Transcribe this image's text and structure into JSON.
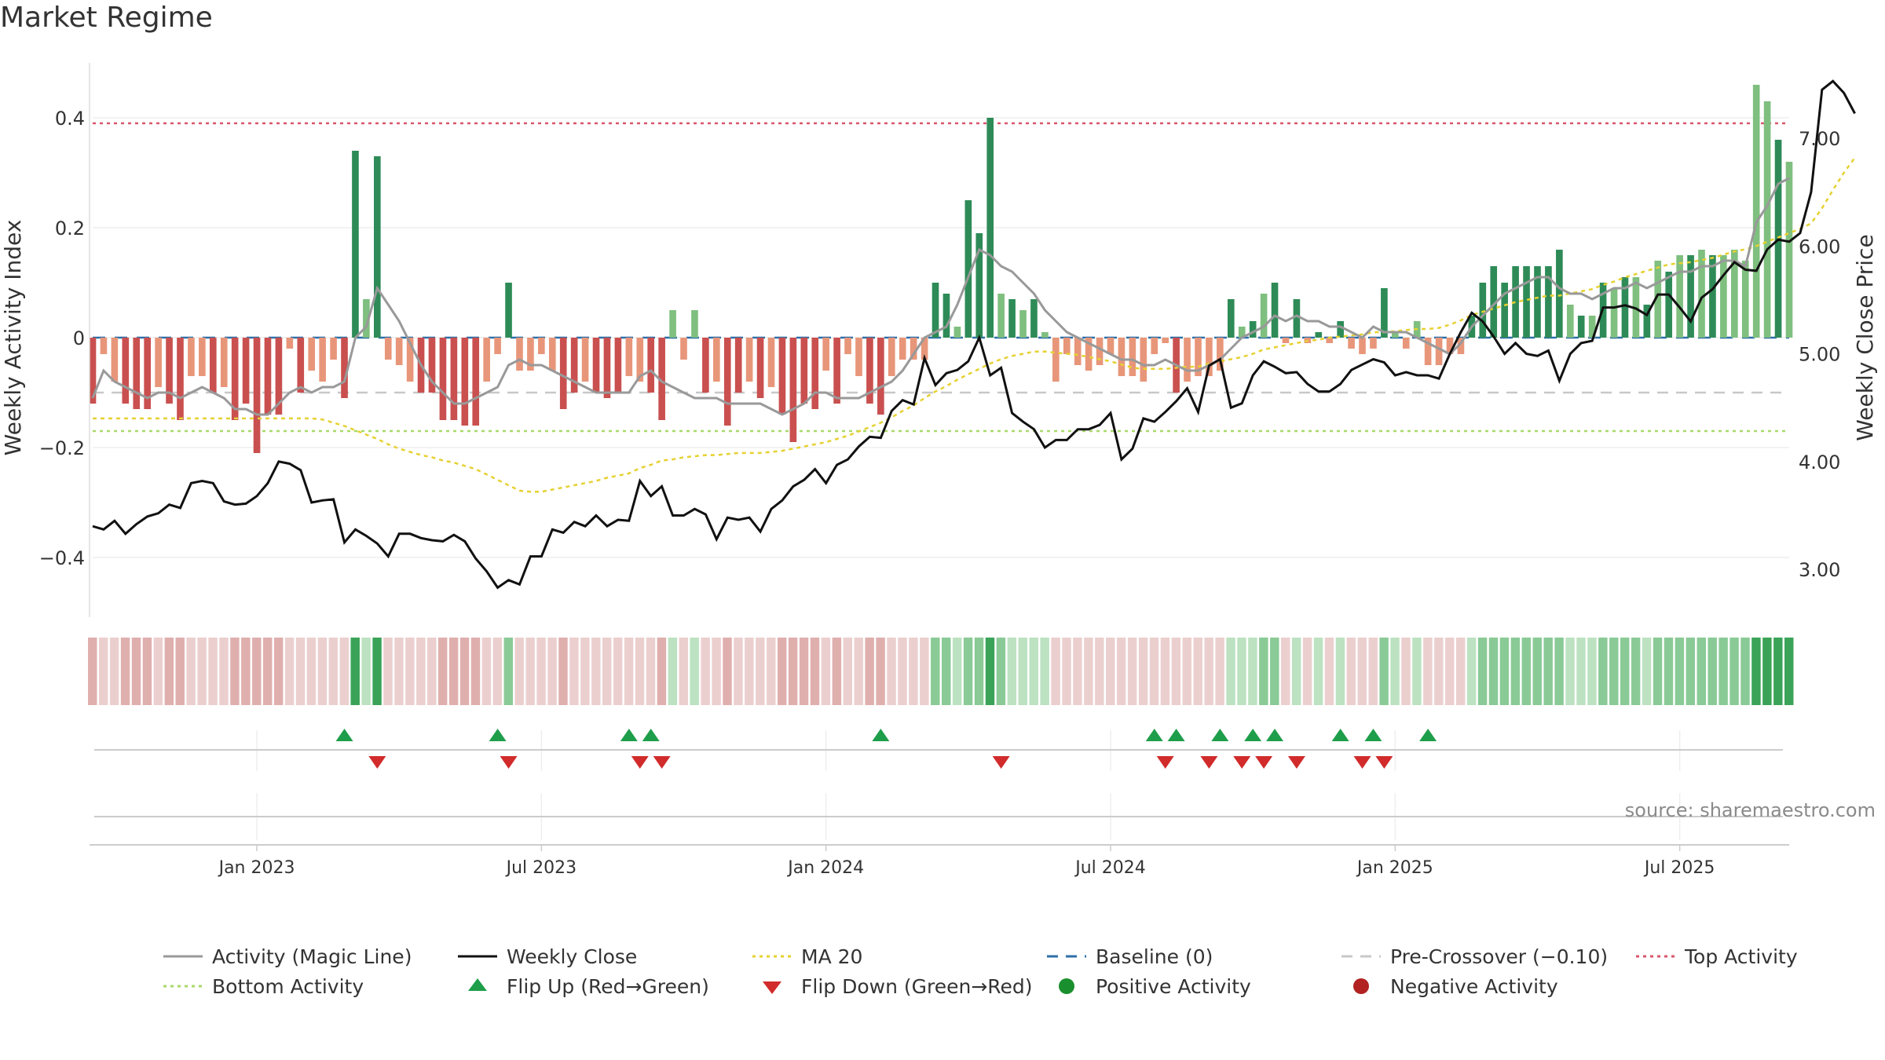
{
  "title": "Market Regime",
  "source": "source: sharemaestro.com",
  "colors": {
    "bar_green_dark": "#2e8b57",
    "bar_green_light": "#7fbf7f",
    "bar_red_dark": "#c9504f",
    "bar_red_light": "#e8967a",
    "close_line": "#111111",
    "magic_line": "#999999",
    "ma20": "#e6d132",
    "baseline": "#2e6fa8",
    "pre_crossover": "#c8c8c8",
    "top_activity": "#d9566b",
    "bottom_activity": "#a8d96a",
    "flip_up": "#1e9e4a",
    "flip_down": "#d12b2b",
    "positive_activity": "#1a8f2e",
    "negative_activity": "#b22222"
  },
  "legend": [
    {
      "key": "magic",
      "label": "Activity (Magic Line)",
      "style": "solid",
      "color": "#999999"
    },
    {
      "key": "close",
      "label": "Weekly Close",
      "style": "solid",
      "color": "#111111"
    },
    {
      "key": "ma20",
      "label": "MA 20",
      "style": "dotted",
      "color": "#e6d132"
    },
    {
      "key": "baseline",
      "label": "Baseline (0)",
      "style": "dashed",
      "color": "#2e6fa8"
    },
    {
      "key": "pre",
      "label": "Pre-Crossover (−0.10)",
      "style": "dashed",
      "color": "#c8c8c8"
    },
    {
      "key": "top",
      "label": "Top Activity",
      "style": "dotted",
      "color": "#d9566b"
    },
    {
      "key": "bottom",
      "label": "Bottom Activity",
      "style": "dotted",
      "color": "#a8d96a"
    },
    {
      "key": "flipup",
      "label": "Flip Up (Red→Green)",
      "style": "triangle-up",
      "color": "#1e9e4a"
    },
    {
      "key": "flipdown",
      "label": "Flip Down (Green→Red)",
      "style": "triangle-down",
      "color": "#d12b2b"
    },
    {
      "key": "pos",
      "label": "Positive Activity",
      "style": "dot",
      "color": "#1a8f2e"
    },
    {
      "key": "neg",
      "label": "Negative Activity",
      "style": "dot",
      "color": "#b22222"
    }
  ],
  "chart_data": {
    "type": "bar",
    "title": "Market Regime",
    "xlabel": "",
    "ylabel": "Weekly Activity Index",
    "y2label": "Weekly Close Price",
    "x_ticks": [
      "Jan 2023",
      "Jul 2023",
      "Jan 2024",
      "Jul 2024",
      "Jan 2025",
      "Jul 2025"
    ],
    "x_tick_week_index": [
      15,
      41,
      67,
      93,
      119,
      145
    ],
    "y_ticks": [
      -0.4,
      -0.2,
      0,
      0.2,
      0.4
    ],
    "y_tick_labels": [
      "−0.4",
      "−0.2",
      "0",
      "0.2",
      "0.4"
    ],
    "ylim": [
      -0.5,
      0.5
    ],
    "y2_ticks": [
      3.0,
      4.0,
      5.0,
      6.0,
      7.0
    ],
    "y2_tick_labels": [
      "3.00",
      "4.00",
      "5.00",
      "6.00",
      "7.00"
    ],
    "y2lim": [
      2.6,
      7.7
    ],
    "reference_lines": {
      "baseline": 0,
      "pre_crossover": -0.1,
      "top_activity": 0.39,
      "bottom_activity": -0.17
    },
    "activity": [
      -0.12,
      -0.03,
      -0.08,
      -0.12,
      -0.13,
      -0.13,
      -0.09,
      -0.12,
      -0.15,
      -0.07,
      -0.07,
      -0.1,
      -0.09,
      -0.15,
      -0.12,
      -0.21,
      -0.14,
      -0.14,
      -0.02,
      -0.1,
      -0.06,
      -0.08,
      -0.04,
      -0.11,
      0.34,
      0.07,
      0.33,
      -0.04,
      -0.05,
      -0.08,
      -0.1,
      -0.1,
      -0.15,
      -0.15,
      -0.16,
      -0.16,
      -0.08,
      -0.03,
      0.1,
      -0.06,
      -0.06,
      -0.03,
      -0.06,
      -0.13,
      -0.1,
      -0.08,
      -0.1,
      -0.11,
      -0.1,
      -0.07,
      -0.08,
      -0.1,
      -0.15,
      0.05,
      -0.04,
      0.05,
      -0.1,
      -0.08,
      -0.16,
      -0.1,
      -0.08,
      -0.11,
      -0.09,
      -0.14,
      -0.19,
      -0.12,
      -0.13,
      -0.06,
      -0.12,
      -0.03,
      -0.07,
      -0.12,
      -0.14,
      -0.07,
      -0.04,
      -0.04,
      -0.04,
      0.1,
      0.08,
      0.02,
      0.25,
      0.19,
      0.4,
      0.08,
      0.07,
      0.05,
      0.07,
      0.01,
      -0.08,
      -0.03,
      -0.05,
      -0.06,
      -0.05,
      -0.03,
      -0.07,
      -0.07,
      -0.08,
      -0.03,
      -0.01,
      -0.1,
      -0.08,
      -0.07,
      -0.07,
      -0.06,
      0.07,
      0.02,
      0.03,
      0.08,
      0.1,
      -0.01,
      0.07,
      -0.01,
      0.01,
      -0.01,
      0.03,
      -0.02,
      -0.03,
      -0.02,
      0.09,
      0.01,
      -0.02,
      0.03,
      -0.05,
      -0.05,
      -0.03,
      -0.03,
      0.04,
      0.1,
      0.13,
      0.1,
      0.13,
      0.13,
      0.13,
      0.13,
      0.16,
      0.06,
      0.04,
      0.04,
      0.1,
      0.09,
      0.11,
      0.11,
      0.06,
      0.14,
      0.12,
      0.15,
      0.15,
      0.16,
      0.15,
      0.15,
      0.16,
      0.14,
      0.46,
      0.43,
      0.36,
      0.32
    ],
    "close": [
      3.4,
      3.37,
      3.45,
      3.33,
      3.42,
      3.49,
      3.52,
      3.6,
      3.57,
      3.8,
      3.82,
      3.8,
      3.63,
      3.6,
      3.61,
      3.68,
      3.8,
      4.0,
      3.98,
      3.92,
      3.62,
      3.64,
      3.65,
      3.25,
      3.37,
      3.31,
      3.24,
      3.12,
      3.33,
      3.33,
      3.29,
      3.27,
      3.26,
      3.32,
      3.26,
      3.1,
      2.98,
      2.83,
      2.9,
      2.86,
      3.12,
      3.12,
      3.37,
      3.34,
      3.44,
      3.4,
      3.5,
      3.4,
      3.46,
      3.45,
      3.82,
      3.68,
      3.77,
      3.5,
      3.5,
      3.56,
      3.51,
      3.28,
      3.48,
      3.46,
      3.48,
      3.35,
      3.56,
      3.64,
      3.77,
      3.83,
      3.93,
      3.8,
      3.97,
      4.02,
      4.14,
      4.23,
      4.22,
      4.47,
      4.57,
      4.53,
      4.96,
      4.71,
      4.82,
      4.85,
      4.93,
      5.15,
      4.8,
      4.87,
      4.45,
      4.37,
      4.3,
      4.13,
      4.2,
      4.2,
      4.3,
      4.3,
      4.34,
      4.45,
      4.02,
      4.12,
      4.4,
      4.37,
      4.46,
      4.56,
      4.68,
      4.46,
      4.89,
      4.95,
      4.5,
      4.54,
      4.8,
      4.93,
      4.88,
      4.82,
      4.83,
      4.72,
      4.65,
      4.65,
      4.72,
      4.85,
      4.9,
      4.95,
      4.92,
      4.8,
      4.83,
      4.8,
      4.8,
      4.77,
      5.0,
      5.2,
      5.38,
      5.3,
      5.16,
      5.0,
      5.1,
      5.0,
      4.98,
      5.03,
      4.75,
      5.0,
      5.1,
      5.12,
      5.43,
      5.43,
      5.45,
      5.42,
      5.36,
      5.55,
      5.55,
      5.43,
      5.3,
      5.52,
      5.6,
      5.73,
      5.85,
      5.78,
      5.77,
      5.97,
      6.06,
      6.04,
      6.12,
      6.5,
      7.45,
      7.53,
      7.42,
      7.23
    ],
    "magic_line": [
      -0.11,
      -0.06,
      -0.08,
      -0.09,
      -0.1,
      -0.11,
      -0.1,
      -0.1,
      -0.11,
      -0.1,
      -0.09,
      -0.1,
      -0.11,
      -0.13,
      -0.13,
      -0.14,
      -0.14,
      -0.12,
      -0.1,
      -0.09,
      -0.1,
      -0.09,
      -0.09,
      -0.08,
      0.0,
      0.02,
      0.09,
      0.06,
      0.03,
      -0.01,
      -0.05,
      -0.08,
      -0.1,
      -0.12,
      -0.12,
      -0.11,
      -0.1,
      -0.09,
      -0.05,
      -0.04,
      -0.05,
      -0.05,
      -0.06,
      -0.07,
      -0.08,
      -0.09,
      -0.1,
      -0.1,
      -0.1,
      -0.1,
      -0.07,
      -0.06,
      -0.08,
      -0.09,
      -0.1,
      -0.11,
      -0.11,
      -0.11,
      -0.12,
      -0.12,
      -0.12,
      -0.12,
      -0.13,
      -0.14,
      -0.13,
      -0.12,
      -0.1,
      -0.1,
      -0.11,
      -0.11,
      -0.11,
      -0.1,
      -0.09,
      -0.08,
      -0.06,
      -0.03,
      0.0,
      0.01,
      0.02,
      0.06,
      0.11,
      0.16,
      0.15,
      0.13,
      0.12,
      0.1,
      0.08,
      0.05,
      0.03,
      0.01,
      -0.0,
      -0.01,
      -0.02,
      -0.03,
      -0.04,
      -0.04,
      -0.05,
      -0.05,
      -0.04,
      -0.05,
      -0.06,
      -0.06,
      -0.05,
      -0.04,
      -0.02,
      -0.0,
      0.01,
      0.02,
      0.04,
      0.03,
      0.04,
      0.03,
      0.03,
      0.02,
      0.02,
      0.01,
      0.0,
      0.02,
      0.01,
      0.01,
      0.01,
      0.0,
      -0.01,
      -0.02,
      -0.03,
      -0.01,
      0.02,
      0.04,
      0.06,
      0.08,
      0.09,
      0.1,
      0.11,
      0.11,
      0.09,
      0.08,
      0.08,
      0.07,
      0.08,
      0.09,
      0.09,
      0.1,
      0.09,
      0.1,
      0.11,
      0.12,
      0.12,
      0.13,
      0.13,
      0.14,
      0.14,
      0.13,
      0.21,
      0.24,
      0.28,
      0.29
    ],
    "ma20": [
      4.4,
      4.4,
      4.4,
      4.4,
      4.4,
      4.4,
      4.4,
      4.4,
      4.4,
      4.4,
      4.4,
      4.4,
      4.4,
      4.4,
      4.4,
      4.4,
      4.4,
      4.4,
      4.4,
      4.4,
      4.4,
      4.39,
      4.36,
      4.33,
      4.29,
      4.25,
      4.21,
      4.16,
      4.12,
      4.09,
      4.06,
      4.04,
      4.01,
      3.99,
      3.96,
      3.93,
      3.88,
      3.83,
      3.78,
      3.73,
      3.72,
      3.72,
      3.74,
      3.76,
      3.78,
      3.8,
      3.82,
      3.85,
      3.87,
      3.89,
      3.94,
      3.97,
      4.01,
      4.02,
      4.04,
      4.05,
      4.06,
      4.06,
      4.07,
      4.08,
      4.08,
      4.08,
      4.09,
      4.1,
      4.12,
      4.14,
      4.16,
      4.18,
      4.21,
      4.24,
      4.28,
      4.32,
      4.36,
      4.41,
      4.47,
      4.52,
      4.59,
      4.65,
      4.7,
      4.76,
      4.81,
      4.86,
      4.91,
      4.95,
      4.98,
      5.0,
      5.02,
      5.02,
      5.01,
      5.0,
      4.99,
      4.97,
      4.95,
      4.93,
      4.9,
      4.87,
      4.86,
      4.86,
      4.86,
      4.87,
      4.88,
      4.88,
      4.91,
      4.93,
      4.95,
      4.97,
      5.0,
      5.04,
      5.06,
      5.08,
      5.1,
      5.12,
      5.13,
      5.15,
      5.16,
      5.17,
      5.18,
      5.2,
      5.2,
      5.21,
      5.22,
      5.23,
      5.23,
      5.24,
      5.27,
      5.31,
      5.36,
      5.39,
      5.42,
      5.45,
      5.48,
      5.5,
      5.52,
      5.54,
      5.54,
      5.56,
      5.58,
      5.6,
      5.64,
      5.67,
      5.71,
      5.74,
      5.77,
      5.8,
      5.83,
      5.84,
      5.85,
      5.87,
      5.89,
      5.92,
      5.95,
      5.97,
      6.0,
      6.04,
      6.08,
      6.12,
      6.16,
      6.21,
      6.35,
      6.52,
      6.68,
      6.82
    ],
    "flip_up_weeks": [
      23,
      37,
      49,
      51,
      72,
      97,
      99,
      103,
      106,
      108,
      114,
      117,
      122
    ],
    "flip_down_weeks": [
      26,
      38,
      50,
      52,
      83,
      98,
      102,
      105,
      107,
      110,
      116,
      118
    ]
  }
}
